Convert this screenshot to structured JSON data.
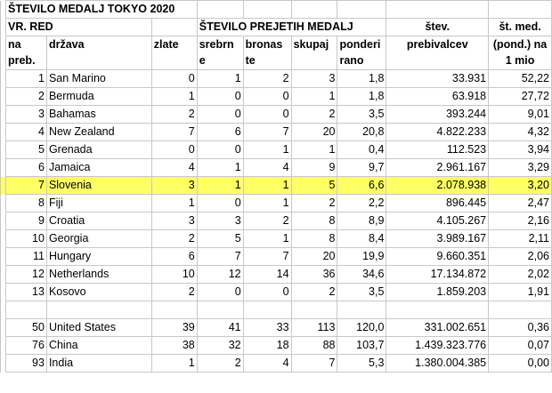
{
  "sheet": {
    "title": "ŠTEVILO MEDALJ TOKYO 2020",
    "group_rank": "VR. RED",
    "group_medals": "ŠTEVILO PREJETIH MEDALJ",
    "col_rank": "na preb.",
    "col_country": "država",
    "col_gold": "zlate",
    "col_silver": "srebrn e",
    "col_bronze": "bronas te",
    "col_total": "skupaj",
    "col_weighted": "ponderi rano",
    "col_population": "štev. prebivalcev",
    "col_per_mio": "št. med. (pond.) na 1 mio",
    "highlight_color": "#ffff66"
  },
  "rows": [
    {
      "rank": "1",
      "country": "San Marino",
      "gold": "0",
      "silver": "1",
      "bronze": "2",
      "total": "3",
      "weighted": "1,8",
      "population": "33.931",
      "per_mio": "52,22"
    },
    {
      "rank": "2",
      "country": "Bermuda",
      "gold": "1",
      "silver": "0",
      "bronze": "0",
      "total": "1",
      "weighted": "1,8",
      "population": "63.918",
      "per_mio": "27,72"
    },
    {
      "rank": "3",
      "country": "Bahamas",
      "gold": "2",
      "silver": "0",
      "bronze": "0",
      "total": "2",
      "weighted": "3,5",
      "population": "393.244",
      "per_mio": "9,01"
    },
    {
      "rank": "4",
      "country": "New Zealand",
      "gold": "7",
      "silver": "6",
      "bronze": "7",
      "total": "20",
      "weighted": "20,8",
      "population": "4.822.233",
      "per_mio": "4,32"
    },
    {
      "rank": "5",
      "country": "Grenada",
      "gold": "0",
      "silver": "0",
      "bronze": "1",
      "total": "1",
      "weighted": "0,4",
      "population": "112.523",
      "per_mio": "3,94"
    },
    {
      "rank": "6",
      "country": "Jamaica",
      "gold": "4",
      "silver": "1",
      "bronze": "4",
      "total": "9",
      "weighted": "9,7",
      "population": "2.961.167",
      "per_mio": "3,29"
    },
    {
      "rank": "7",
      "country": "Slovenia",
      "gold": "3",
      "silver": "1",
      "bronze": "1",
      "total": "5",
      "weighted": "6,6",
      "population": "2.078.938",
      "per_mio": "3,20",
      "highlight": true
    },
    {
      "rank": "8",
      "country": "Fiji",
      "gold": "1",
      "silver": "0",
      "bronze": "1",
      "total": "2",
      "weighted": "2,2",
      "population": "896.445",
      "per_mio": "2,47"
    },
    {
      "rank": "9",
      "country": "Croatia",
      "gold": "3",
      "silver": "3",
      "bronze": "2",
      "total": "8",
      "weighted": "8,9",
      "population": "4.105.267",
      "per_mio": "2,16"
    },
    {
      "rank": "10",
      "country": "Georgia",
      "gold": "2",
      "silver": "5",
      "bronze": "1",
      "total": "8",
      "weighted": "8,4",
      "population": "3.989.167",
      "per_mio": "2,11"
    },
    {
      "rank": "11",
      "country": "Hungary",
      "gold": "6",
      "silver": "7",
      "bronze": "7",
      "total": "20",
      "weighted": "19,9",
      "population": "9.660.351",
      "per_mio": "2,06"
    },
    {
      "rank": "12",
      "country": "Netherlands",
      "gold": "10",
      "silver": "12",
      "bronze": "14",
      "total": "36",
      "weighted": "34,6",
      "population": "17.134.872",
      "per_mio": "2,02"
    },
    {
      "rank": "13",
      "country": "Kosovo",
      "gold": "2",
      "silver": "0",
      "bronze": "0",
      "total": "2",
      "weighted": "3,5",
      "population": "1.859.203",
      "per_mio": "1,91"
    },
    {
      "blank": true
    },
    {
      "rank": "50",
      "country": "United States",
      "gold": "39",
      "silver": "41",
      "bronze": "33",
      "total": "113",
      "weighted": "120,0",
      "population": "331.002.651",
      "per_mio": "0,36"
    },
    {
      "rank": "76",
      "country": "China",
      "gold": "38",
      "silver": "32",
      "bronze": "18",
      "total": "88",
      "weighted": "103,7",
      "population": "1.439.323.776",
      "per_mio": "0,07"
    },
    {
      "rank": "93",
      "country": "India",
      "gold": "1",
      "silver": "2",
      "bronze": "4",
      "total": "7",
      "weighted": "5,3",
      "population": "1.380.004.385",
      "per_mio": "0,00"
    }
  ]
}
